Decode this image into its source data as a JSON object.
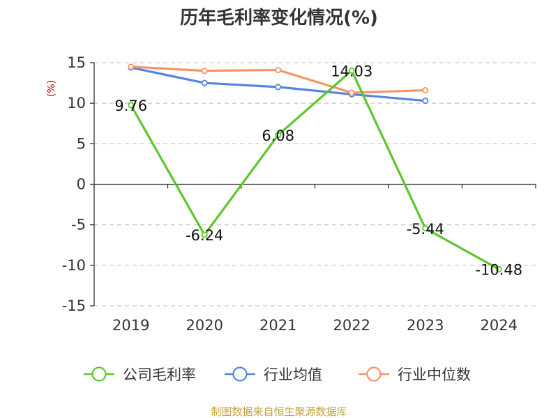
{
  "source_note": "制图数据来自恒生聚源数据库",
  "colors": {
    "company": "#5bc72d",
    "industry_avg": "#5585e0",
    "industry_median": "#f59563",
    "unit_label": "#cc0000",
    "source": "#c8a040",
    "grid": "#cccccc",
    "axis": "#333333"
  },
  "chart_data": {
    "type": "line",
    "title": "历年毛利率变化情况(%)",
    "ylabel": "(%)",
    "xlabel": "",
    "categories": [
      "2019",
      "2020",
      "2021",
      "2022",
      "2023",
      "2024"
    ],
    "ylim": [
      -15,
      15
    ],
    "yticks": [
      15,
      10,
      5,
      0,
      -5,
      -10,
      -15
    ],
    "grid": true,
    "legend_position": "bottom",
    "series": [
      {
        "name": "公司毛利率",
        "color": "#5bc72d",
        "values": [
          9.76,
          -6.24,
          6.08,
          14.03,
          -5.44,
          -10.48
        ],
        "labels": [
          "9.76",
          "-6.24",
          "6.08",
          "14.03",
          "-5.44",
          "-10.48"
        ]
      },
      {
        "name": "行业均值",
        "color": "#5585e0",
        "values": [
          14.4,
          12.5,
          12.0,
          11.1,
          10.3,
          null
        ]
      },
      {
        "name": "行业中位数",
        "color": "#f59563",
        "values": [
          14.5,
          14.0,
          14.1,
          11.3,
          11.6,
          null
        ]
      }
    ]
  }
}
